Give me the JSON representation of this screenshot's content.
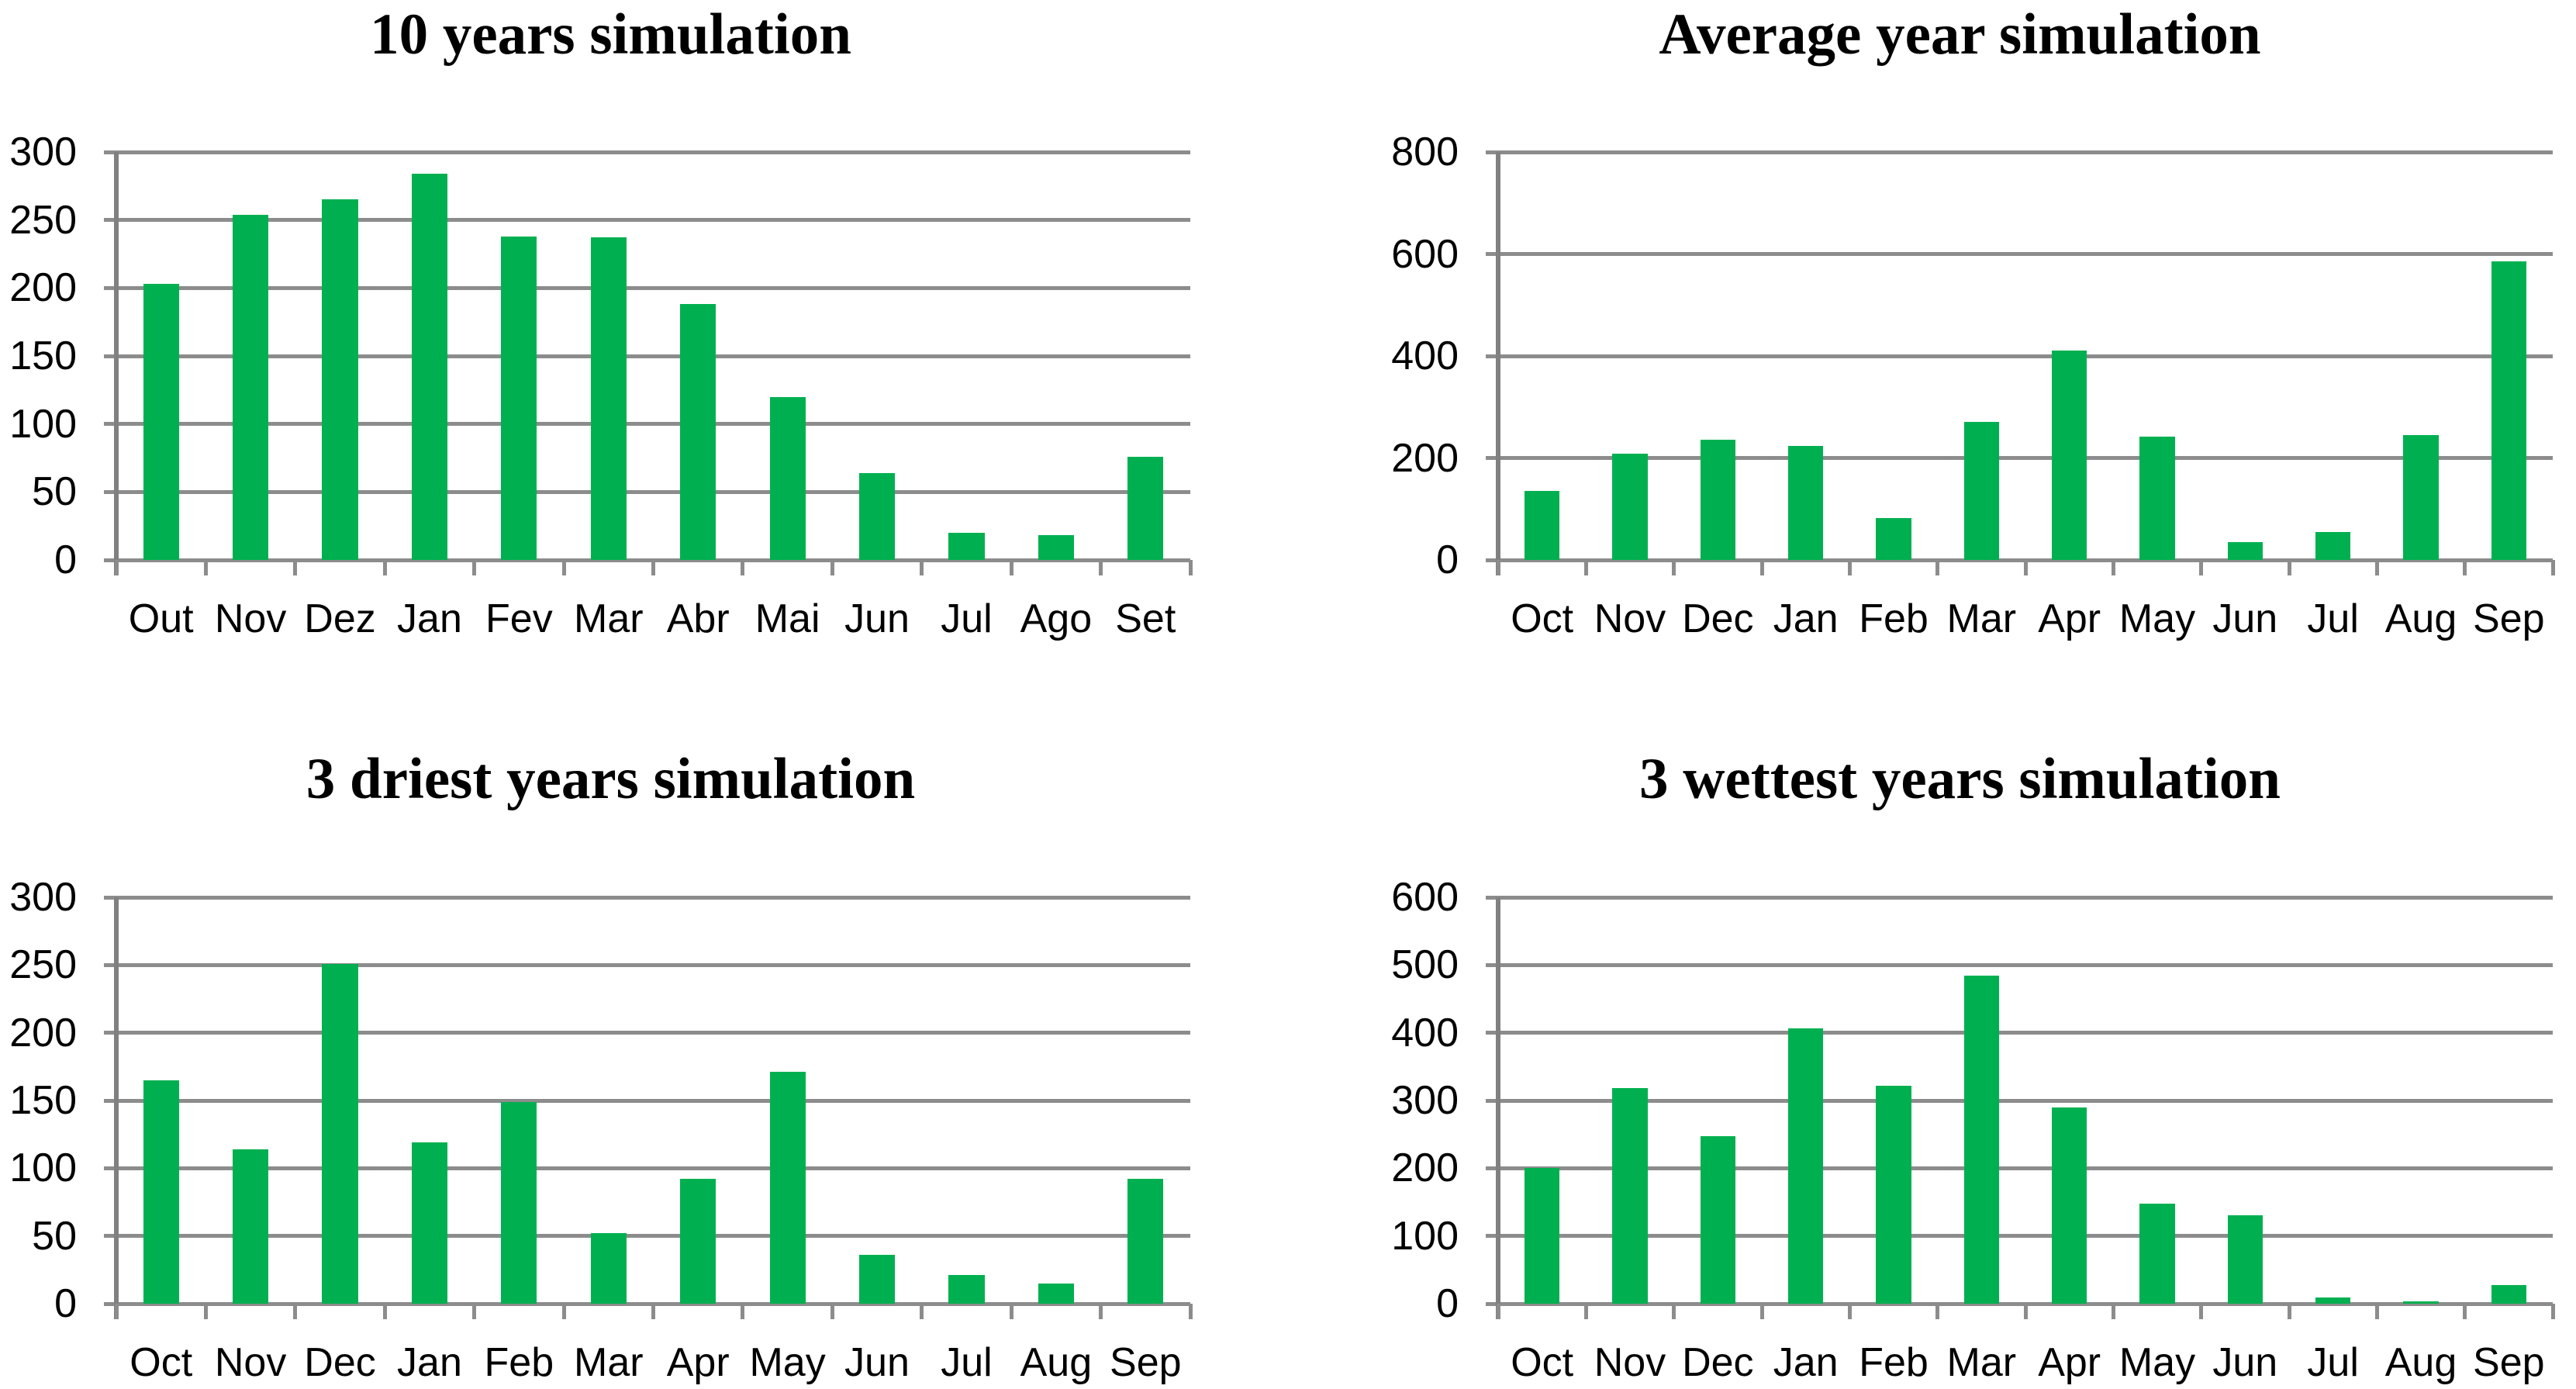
{
  "colors": {
    "bar": "#00B050",
    "gridline": "#8C8C8C",
    "axis": "#808080",
    "text": "#000000",
    "background": "#FFFFFF"
  },
  "chart_data": [
    {
      "type": "bar",
      "title": "10 years simulation",
      "categories": [
        "Out",
        "Nov",
        "Dez",
        "Jan",
        "Fev",
        "Mar",
        "Abr",
        "Mai",
        "Jun",
        "Jul",
        "Ago",
        "Set"
      ],
      "values": [
        203,
        254,
        265,
        284,
        238,
        237,
        188,
        120,
        64,
        20,
        18,
        76
      ],
      "xlabel": "",
      "ylabel": "",
      "ylim": [
        0,
        300
      ],
      "ytick_step": 50,
      "grid": true,
      "legend": "none"
    },
    {
      "type": "bar",
      "title": "Average year simulation",
      "categories": [
        "Oct",
        "Nov",
        "Dec",
        "Jan",
        "Feb",
        "Mar",
        "Apr",
        "May",
        "Jun",
        "Jul",
        "Aug",
        "Sep"
      ],
      "values": [
        135,
        208,
        236,
        224,
        82,
        270,
        410,
        242,
        35,
        55,
        245,
        585
      ],
      "xlabel": "",
      "ylabel": "",
      "ylim": [
        0,
        800
      ],
      "ytick_step": 200,
      "grid": true,
      "legend": "none"
    },
    {
      "type": "bar",
      "title": "3 driest years simulation",
      "categories": [
        "Oct",
        "Nov",
        "Dec",
        "Jan",
        "Feb",
        "Mar",
        "Apr",
        "May",
        "Jun",
        "Jul",
        "Aug",
        "Sep"
      ],
      "values": [
        165,
        114,
        251,
        119,
        149,
        52,
        92,
        171,
        36,
        21,
        15,
        92
      ],
      "xlabel": "",
      "ylabel": "",
      "ylim": [
        0,
        300
      ],
      "ytick_step": 50,
      "grid": true,
      "legend": "none"
    },
    {
      "type": "bar",
      "title": "3 wettest years simulation",
      "categories": [
        "Oct",
        "Nov",
        "Dec",
        "Jan",
        "Feb",
        "Mar",
        "Apr",
        "May",
        "Jun",
        "Jul",
        "Aug",
        "Sep"
      ],
      "values": [
        200,
        318,
        247,
        406,
        322,
        484,
        290,
        148,
        131,
        9,
        3,
        28
      ],
      "xlabel": "",
      "ylabel": "",
      "ylim": [
        0,
        600
      ],
      "ytick_step": 100,
      "grid": true,
      "legend": "none"
    }
  ]
}
